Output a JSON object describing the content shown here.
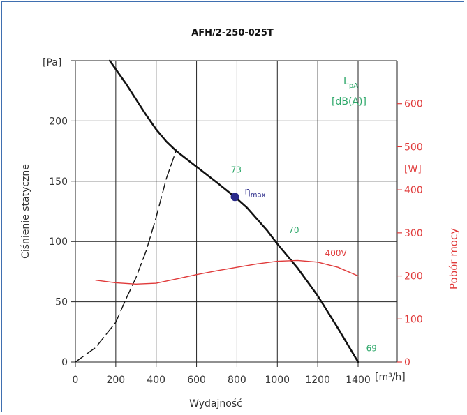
{
  "chart_data": {
    "type": "line",
    "title": "AFH/2-250-025T",
    "xlabel": "Wydajność",
    "ylabel": "Ciśnienie statyczne",
    "y2label": "Pobór mocy",
    "x_unit": "[m³/h]",
    "y_unit": "[Pa]",
    "y2_unit": "[W]",
    "xlim": [
      0,
      1400
    ],
    "ylim": [
      0,
      250
    ],
    "y2lim": [
      0,
      700
    ],
    "x_ticks": [
      "0",
      "200",
      "400",
      "600",
      "800",
      "1000",
      "1200",
      "1400"
    ],
    "y_ticks": [
      "0",
      "50",
      "100",
      "150",
      "200"
    ],
    "y2_ticks": [
      "0",
      "100",
      "200",
      "300",
      "400",
      "500",
      "600"
    ],
    "grid": true,
    "series": [
      {
        "name": "",
        "axis": "left",
        "style": "solid",
        "color": "#111111",
        "x": [
          170,
          250,
          300,
          350,
          400,
          450,
          500,
          600,
          700,
          790,
          850,
          950,
          1000,
          1100,
          1200,
          1300,
          1400
        ],
        "y": [
          250,
          231,
          218,
          205,
          193,
          183,
          175,
          162,
          149,
          137,
          128,
          109,
          98,
          78,
          55,
          28,
          0
        ]
      },
      {
        "name": "",
        "axis": "left",
        "style": "dashed",
        "color": "#111111",
        "x": [
          0,
          100,
          200,
          250,
          300,
          350,
          400,
          450,
          500
        ],
        "y": [
          0,
          12,
          33,
          52,
          70,
          92,
          120,
          152,
          176
        ]
      },
      {
        "name": "400V",
        "axis": "right",
        "style": "solid",
        "color": "#e03a3a",
        "x": [
          100,
          200,
          300,
          400,
          500,
          600,
          700,
          800,
          900,
          1000,
          1100,
          1200,
          1300,
          1400
        ],
        "y": [
          190,
          184,
          181,
          183,
          193,
          203,
          212,
          220,
          228,
          234,
          236,
          232,
          220,
          200
        ]
      }
    ],
    "bep": {
      "x": 790,
      "y": 137,
      "label": "η",
      "sub": "max"
    },
    "sound": {
      "label": "L",
      "sub": "pA",
      "unit": "[dB(A)]",
      "points": [
        {
          "text": "73",
          "x": 770,
          "y": 157
        },
        {
          "text": "70",
          "x": 1055,
          "y": 107
        },
        {
          "text": "69",
          "x": 1440,
          "y": 9
        }
      ]
    },
    "power_label": "400V"
  }
}
